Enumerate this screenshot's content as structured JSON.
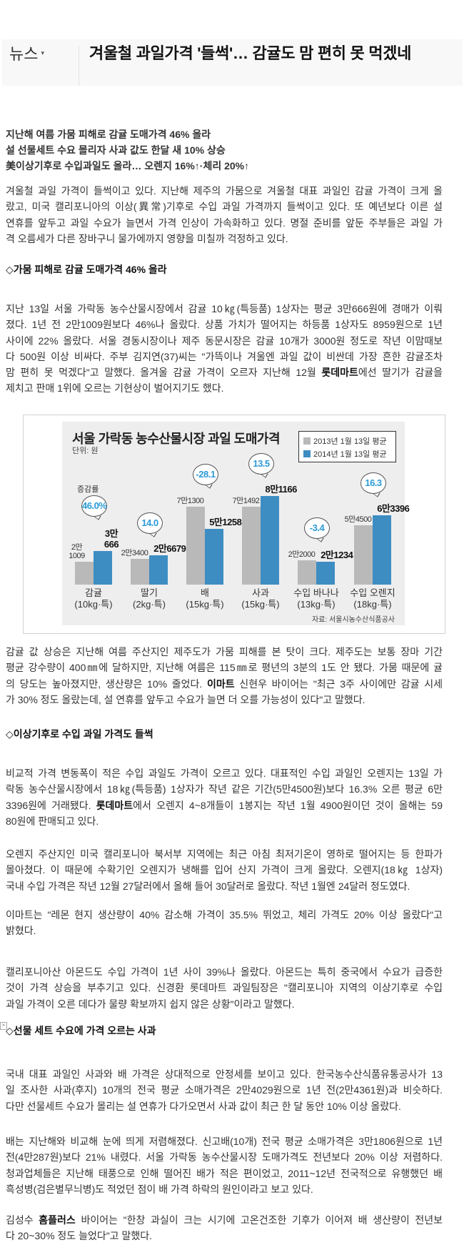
{
  "header": {
    "category": "뉴스",
    "caret": "▾",
    "title": "겨울철 과일가격 '들썩'… 감귤도 맘 편히 못 먹겠네"
  },
  "subheads": [
    "지난해 여름 가뭄 피해로 감귤 도매가격 46% 올라",
    "설 선물세트 수요 몰리자 사과 값도 한달 새 10% 상승",
    "美이상기후로 수입과일도 올라… 오렌지 16%↑·체리 20%↑"
  ],
  "sections": {
    "s1": "◇가뭄 피해로 감귤 도매가격 46% 올라",
    "s2": "◇이상기후로 수입 과일 가격도 들썩",
    "s3": "◇선물 세트 수요에 가격 오르는 사과"
  },
  "paragraphs": {
    "p1": [
      [
        "겨울철 과일 가격이 들썩이고 있다. 지난해 제주의 가뭄으로 겨울철 대표 과일인 감귤 가격이 크게 올"
      ],
      [
        "랐고, 미국 캘리포니아의 이상(異常)기후로 수입 과일 가격까지 들썩이고 있다. 또 예년보다 이른 설"
      ],
      [
        "연휴를 앞두고 과일 수요가 늘면서 가격 인상이 가속화하고 있다. 명절 준비를 앞둔 주부들은 과일 가"
      ],
      [
        "격 오름세가 다른 장바구니 물가에까지 영향을 미칠까 걱정하고 있다."
      ]
    ],
    "p2": [
      [
        "지난 13일 서울 가락동 농수산물시장에서 감귤 10㎏(특등품) 1상자는 평균 3만666원에 경매가 이뤄"
      ],
      [
        "졌다. 1년 전 2만1009원보다 46%나 올랐다. 상품 가치가 떨어지는 하등품 1상자도 8959원으로 1년"
      ],
      [
        "사이에 22% 올랐다. 서울 경동시장이나 제주 동문시장은 감귤 10개가 3000원 정도로 작년 이맘때보"
      ],
      [
        "다 500원 이상 비싸다. 주부 김지연(37)씨는 \"가뜩이나 겨울엔 과일 값이 비싼데 가장 흔한 감귤조차"
      ],
      [
        "맘 편히 못 먹겠다\"고 말했다. 올겨울 감귤 가격이 오르자 지난해 12월 ",
        {
          "b": "롯데마트"
        },
        "에선 딸기가 감귤을"
      ],
      [
        "제치고 판매 1위에 오르는 기현상이 벌어지기도 했다."
      ]
    ],
    "p3": [
      [
        "감귤 값 상승은 지난해 여름 주산지인 제주도가 가뭄 피해를 본 탓이 크다. 제주도는 보통 장마 기간"
      ],
      [
        "평균 강수량이 400㎜에 달하지만, 지난해 여름은 115㎜로 평년의 3분의 1도 안 됐다. 가뭄 때문에 귤"
      ],
      [
        "의 당도는 높아졌지만, 생산량은 10% 줄었다. ",
        {
          "b": "이마트"
        },
        " 신현우 바이어는 \"최근 3주 사이에만 감귤 시세"
      ],
      [
        "가 30% 정도 올랐는데, 설 연휴를 앞두고 수요가 늘면 더 오를 가능성이 있다\"고 말했다."
      ]
    ],
    "p4": [
      [
        "비교적 가격 변동폭이 적은 수입 과일도 가격이 오르고 있다. 대표적인 수입 과일인 오렌지는 13일 가"
      ],
      [
        "락동 농수산물시장에서 18㎏(특등품) 1상자가 작년 같은 기간(5만4500원)보다 16.3% 오른 평균 6만"
      ],
      [
        "3396원에 거래됐다. ",
        {
          "b": "롯데마트"
        },
        "에서 오렌지 4~8개들이 1봉지는 작년 1월 4900원이던 것이 올해는 59"
      ],
      [
        "80원에 판매되고 있다."
      ]
    ],
    "p5": [
      [
        "오렌지 주산지인 미국 캘리포니아 북서부 지역에는 최근 아침 최저기온이 영하로 떨어지는 등 한파가"
      ],
      [
        "몰아쳤다. 이 때문에 수확기인 오렌지가 냉해를 입어 산지 가격이 크게 올랐다. 오렌지(18㎏ 1상자)"
      ],
      [
        "국내 수입 가격은 작년 12월 27달러에서 올해 들어 30달러로 올랐다. 작년 1월엔 24달러 정도였다."
      ]
    ],
    "p6": [
      [
        "이마트는 \"레몬 현지 생산량이 40% 감소해 가격이 35.5% 뛰었고, 체리 가격도 20% 이상 올랐다\"고"
      ],
      [
        "밝혔다."
      ]
    ],
    "p7": [
      [
        "캘리포니아산 아몬드도 수입 가격이 1년 사이 39%나 올랐다. 아몬드는 특히 중국에서 수요가 급증한"
      ],
      [
        "것이 가격 상승을 부추기고 있다. 신경환 롯데마트 과일팀장은 \"캘리포니아 지역의 이상기후로 수입"
      ],
      [
        "과일 가격이 오른 데다가 물량 확보까지 쉽지 않은 상황\"이라고 말했다."
      ]
    ],
    "p8": [
      [
        "국내 대표 과일인 사과와 배 가격은 상대적으로 안정세를 보이고 있다. 한국농수산식품유통공사가 13"
      ],
      [
        "일 조사한 사과(후지) 10개의 전국 평균 소매가격은 2만4029원으로 1년 전(2만4361원)과 비슷하다."
      ],
      [
        "다만 선물세트 수요가 몰리는 설 연휴가 다가오면서 사과 값이 최근 한 달 동안 10% 이상 올랐다."
      ]
    ],
    "p9": [
      [
        "배는 지난해와 비교해 눈에 띄게 저렴해졌다. 신고배(10개) 전국 평균 소매가격은 3만1806원으로 1년"
      ],
      [
        "전(4만287원)보다 21% 내렸다. 서울 가락동 농수산물시장 도매가격도 전년보다 20% 이상 저렴하다."
      ],
      [
        "청과업체들은 지난해 태풍으로 인해 떨어진 배가 적은 편이었고, 2011~12년 전국적으로 유행했던 배"
      ],
      [
        "흑성병(검은별무늬병)도 적었던 점이 배 가격 하락의 원인이라고 보고 있다."
      ]
    ],
    "p10": [
      [
        "김성수 ",
        {
          "b": "홈플러스"
        },
        " 바이어는 \"한창 과실이 크는 시기에 고온건조한 기후가 이어져 배 생산량이 전년보"
      ],
      [
        "다 20~30% 정도 늘었다\"고 말했다."
      ]
    ]
  },
  "broken_image_icon": "broken-image-icon",
  "chart_data": {
    "type": "bar",
    "title": "서울 가락동 농수산물시장 과일 도매가격",
    "unit": "단위: 원",
    "rate_label": "증감률",
    "source": "자료: 서울시농수산식품공사",
    "colors": {
      "2013": "#b9b9b9",
      "2014": "#3d8dc2",
      "rate_text": "#2b9ad6"
    },
    "categories": [
      "감귤",
      "딸기",
      "배",
      "사과",
      "수입 바나나",
      "수입 오렌지"
    ],
    "category_units": [
      "(10kg·특)",
      "(2kg·특)",
      "(15kg·특)",
      "(15kg·특)",
      "(13kg·특)",
      "(18kg·특)"
    ],
    "series": [
      {
        "name": "2013년 1월 13일 평균",
        "values": [
          21009,
          23400,
          71300,
          71492,
          22000,
          54500
        ],
        "labels": [
          "2만\n1009",
          "2만3400",
          "7만1300",
          "7만1492",
          "2만2000",
          "5만4500"
        ]
      },
      {
        "name": "2014년 1월 13일 평균",
        "values": [
          30666,
          26679,
          51258,
          81166,
          21234,
          63396
        ],
        "labels": [
          "3만\n666",
          "2만6679",
          "5만1258",
          "8만1166",
          "2만1234",
          "6만3396"
        ]
      }
    ],
    "change_rates": [
      "46.0%",
      "14.0",
      "-28.1",
      "13.5",
      "-3.4",
      "16.3"
    ],
    "legend": "top-right",
    "ylim": [
      0,
      90000
    ]
  }
}
